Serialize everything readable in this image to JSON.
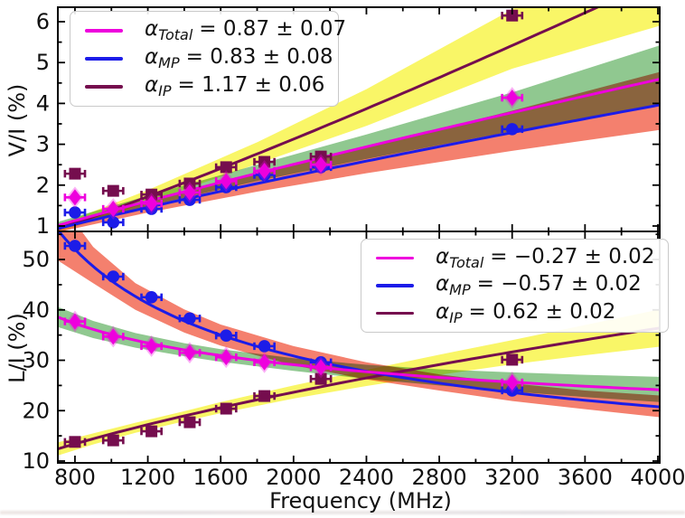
{
  "figure": {
    "xlabel": "Frequency (MHz)",
    "xlim": [
      706,
      4010
    ],
    "x_major_ticks": [
      800,
      1200,
      1600,
      2000,
      2400,
      2800,
      3200,
      3600,
      4000
    ],
    "x_tick_labels": [
      "800",
      "1200",
      "1600",
      "2000",
      "2400",
      "2800",
      "3200",
      "3600",
      "4000"
    ],
    "x_minor_ticks": [
      1000,
      1400,
      1800,
      2200,
      2600,
      3000,
      3400,
      3800
    ],
    "frame_color": "#000000",
    "background": "#ffffff"
  },
  "chart_data": [
    {
      "type": "scatter",
      "panel": "top",
      "ylabel": "V/I (%)",
      "ylim": [
        0.867,
        6.354
      ],
      "y_major_ticks": [
        1,
        2,
        3,
        4,
        5,
        6
      ],
      "y_tick_labels": [
        "1",
        "2",
        "3",
        "4",
        "5",
        "6"
      ],
      "y_minor_ticks": [
        1.5,
        2.5,
        3.5,
        4.5,
        5.5
      ],
      "grid": false,
      "legend_position": "upper-left",
      "frequencies": [
        800,
        1010,
        1220,
        1430,
        1630,
        1840,
        2150,
        3200
      ],
      "xerr": 55,
      "series": [
        {
          "name": "Total",
          "marker": "diamond",
          "color": "#ee00dd",
          "band_color": "#90c890",
          "values": [
            1.7,
            1.42,
            1.55,
            1.82,
            2.1,
            2.35,
            2.5,
            4.14
          ],
          "yerr": 0.07,
          "fit": {
            "A_800": 1.13,
            "alpha": 0.87
          },
          "band": {
            "f": [
              706,
              1200,
              1800,
              2400,
              3200,
              4010
            ],
            "lo": [
              0.93,
              1.49,
              2.1,
              2.64,
              3.32,
              3.95
            ],
            "hi": [
              1.1,
              1.74,
              2.5,
              3.24,
              4.27,
              5.42
            ]
          },
          "legend": {
            "alpha": "α",
            "sub": "Total",
            "text": "= 0.87 ± 0.07"
          }
        },
        {
          "name": "MP",
          "marker": "circle",
          "color": "#1c1ce8",
          "band_color": "#f4806e",
          "values": [
            1.33,
            1.09,
            1.42,
            1.64,
            1.95,
            2.25,
            2.44,
            3.37
          ],
          "yerr": 0.07,
          "fit": {
            "A_800": 1.04,
            "alpha": 0.83
          },
          "band": {
            "f": [
              706,
              1200,
              1800,
              2400,
              3200,
              4010
            ],
            "lo": [
              0.85,
              1.33,
              1.84,
              2.29,
              2.84,
              3.35
            ],
            "hi": [
              1.02,
              1.59,
              2.27,
              2.93,
              3.82,
              4.77
            ]
          },
          "legend": {
            "alpha": "α",
            "sub": "MP",
            "text": "= 0.83 ± 0.08"
          }
        },
        {
          "name": "IP",
          "marker": "square",
          "color": "#750d4e",
          "band_color": "#f9f667",
          "values": [
            2.28,
            1.86,
            1.77,
            2.04,
            2.44,
            2.57,
            2.7,
            6.15
          ],
          "yerr": 0.07,
          "fit": {
            "A_800": 1.07,
            "alpha": 1.17
          },
          "band": {
            "f": [
              706,
              1200,
              1800,
              2400,
              3200,
              4010
            ],
            "lo": [
              0.84,
              1.58,
              2.52,
              3.45,
              4.85,
              5.9
            ],
            "hi": [
              1.02,
              1.88,
              3.05,
              4.35,
              6.3,
              8.6
            ]
          },
          "legend": {
            "alpha": "α",
            "sub": "IP",
            "text": "= 1.17 ± 0.06"
          }
        }
      ]
    },
    {
      "type": "scatter",
      "panel": "bottom",
      "ylabel": "L/I (%)",
      "ylim": [
        9.64,
        55.57
      ],
      "y_major_ticks": [
        10,
        20,
        30,
        40,
        50
      ],
      "y_tick_labels": [
        "10",
        "20",
        "30",
        "40",
        "50"
      ],
      "y_minor_ticks": [
        15,
        25,
        35,
        45,
        55
      ],
      "grid": false,
      "legend_position": "upper-right",
      "frequencies": [
        800,
        1010,
        1220,
        1430,
        1630,
        1840,
        2150,
        3200
      ],
      "xerr": 55,
      "series": [
        {
          "name": "Total",
          "marker": "diamond",
          "color": "#ee00dd",
          "band_color": "#90c890",
          "values": [
            37.7,
            34.7,
            32.8,
            31.5,
            30.6,
            29.6,
            28.6,
            25.6
          ],
          "yerr": 0.8,
          "fit": {
            "A_800": 37.3,
            "alpha": -0.27
          },
          "band": {
            "f": [
              706,
              900,
              1132,
              1400,
              1600,
              2000,
              2400,
              2800,
              3200,
              3600,
              4010
            ],
            "lo": [
              36.6,
              34.4,
              32.5,
              30.8,
              29.7,
              27.9,
              26.3,
              25.0,
              23.8,
              22.7,
              21.7
            ],
            "hi": [
              40.6,
              37.8,
              35.4,
              33.4,
              32.2,
              30.4,
              29.1,
              28.2,
              27.6,
              27.1,
              26.7
            ]
          },
          "legend": {
            "alpha": "α",
            "sub": "Total",
            "text": "= −0.27 ± 0.02"
          }
        },
        {
          "name": "MP",
          "marker": "circle",
          "color": "#1c1ce8",
          "band_color": "#f4806e",
          "values": [
            52.7,
            46.6,
            42.5,
            38.3,
            34.9,
            32.8,
            29.6,
            24.0
          ],
          "yerr": 0.9,
          "fit": {
            "A_800": 52.0,
            "alpha": -0.57
          },
          "band": {
            "f": [
              706,
              900,
              1132,
              1400,
              1600,
              2000,
              2400,
              2800,
              3200,
              3600,
              4010
            ],
            "lo": [
              49.8,
              45.3,
              40.0,
              35.5,
              32.9,
              29.0,
              26.2,
              24.0,
              21.9,
              20.3,
              18.7
            ],
            "hi": [
              62.0,
              52.5,
              45.3,
              40.1,
              37.1,
              32.8,
              29.6,
              27.2,
              25.4,
              24.0,
              23.0
            ]
          },
          "legend": {
            "alpha": "α",
            "sub": "MP",
            "text": "= −0.57 ± 0.02"
          }
        },
        {
          "name": "IP",
          "marker": "square",
          "color": "#750d4e",
          "band_color": "#f9f667",
          "values": [
            13.8,
            14.1,
            15.9,
            17.7,
            20.4,
            22.9,
            26.3,
            30.1
          ],
          "yerr": 0.8,
          "fit": {
            "A_800": 13.4,
            "alpha": 0.62
          },
          "band": {
            "f": [
              706,
              900,
              1132,
              1400,
              1600,
              2000,
              2400,
              2800,
              3200,
              3600,
              4010
            ],
            "lo": [
              11.1,
              13.3,
              15.6,
              17.9,
              19.5,
              22.4,
              24.9,
              27.1,
              29.2,
              31.0,
              32.7
            ],
            "hi": [
              13.7,
              15.5,
              17.6,
              19.9,
              21.7,
              25.0,
              28.1,
              31.1,
              34.0,
              37.0,
              40.1
            ]
          },
          "legend": {
            "alpha": "α",
            "sub": "IP",
            "text": "= 0.62 ± 0.02"
          }
        }
      ]
    }
  ]
}
